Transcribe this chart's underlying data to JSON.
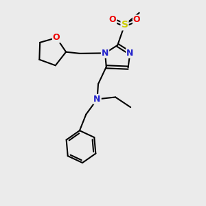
{
  "background_color": "#ebebeb",
  "atom_colors": {
    "C": "#000000",
    "N": "#2222cc",
    "O": "#ee0000",
    "S": "#cccc00"
  },
  "bond_color": "#000000",
  "bond_width": 1.5,
  "dbo": 0.07,
  "figsize": [
    3.0,
    3.0
  ],
  "dpi": 100
}
